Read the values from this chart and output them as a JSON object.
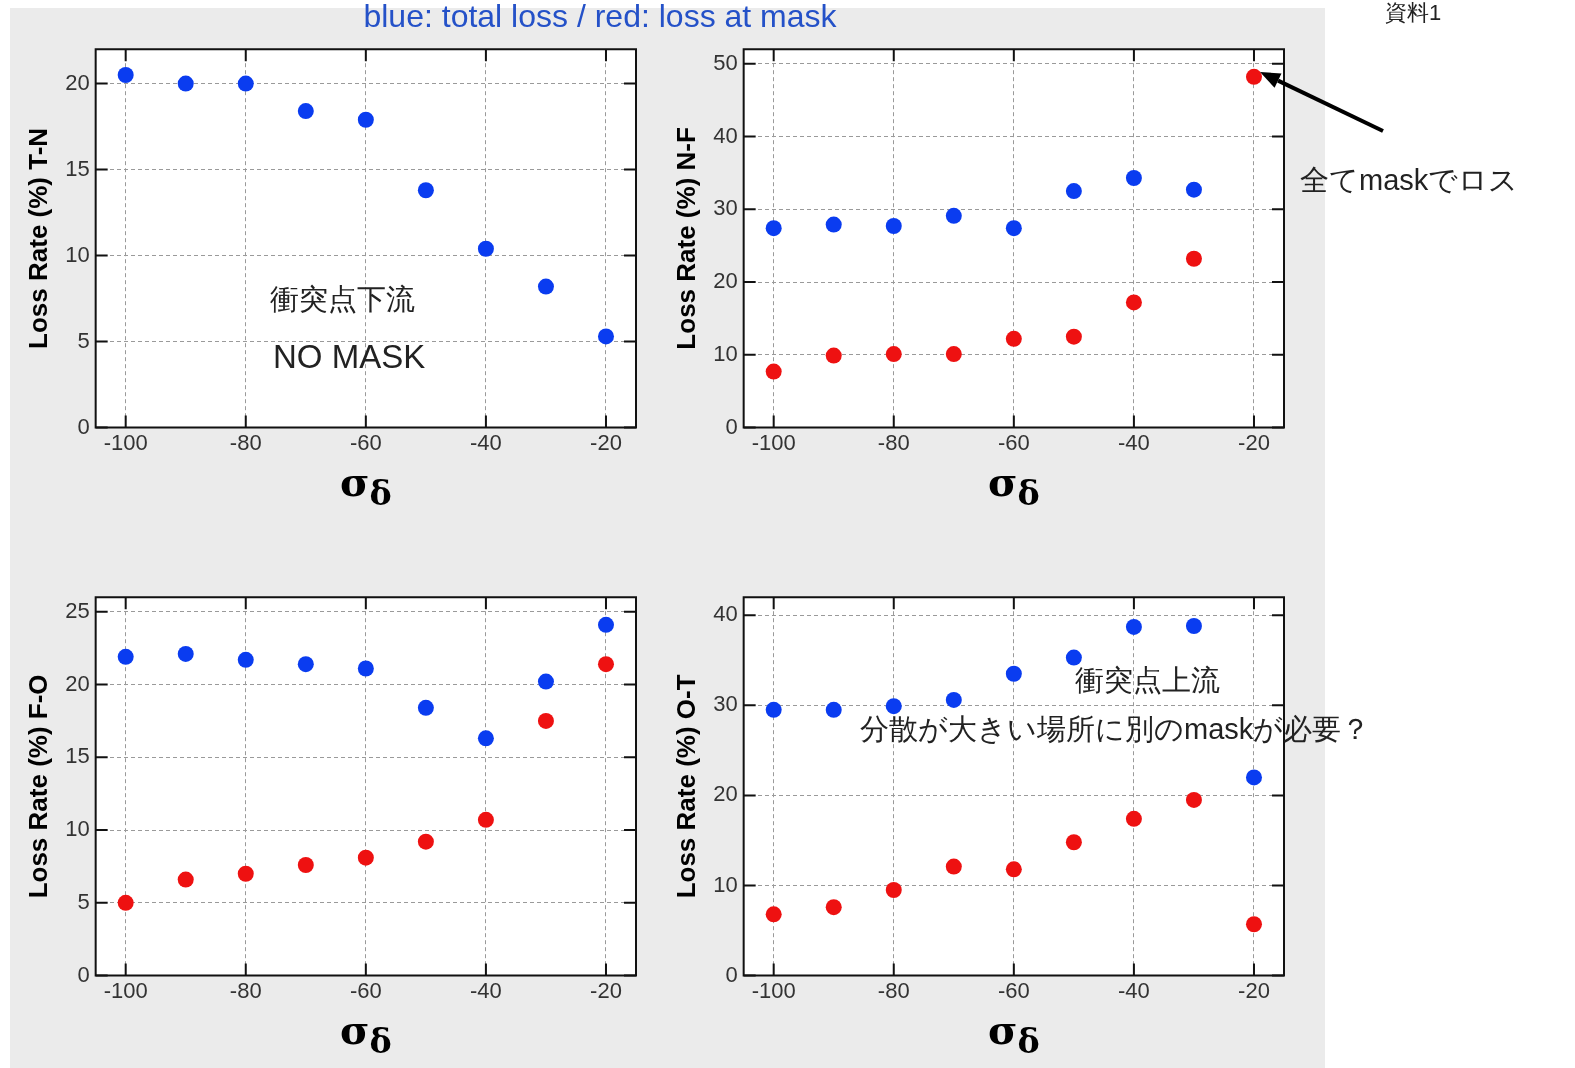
{
  "chart_data": [
    {
      "type": "scatter",
      "title": "blue: total loss / red: loss at mask",
      "xlabel": "σ$_{δ}$",
      "ylabel": "Loss Rate (%) T-N",
      "x": [
        -100,
        -90,
        -80,
        -70,
        -60,
        -50,
        -40,
        -30,
        -20
      ],
      "xlim": [
        -105,
        -15
      ],
      "xticks": [
        -100,
        -80,
        -60,
        -40,
        -20
      ],
      "ylim": [
        0,
        22
      ],
      "yticks": [
        0,
        5,
        10,
        15,
        20
      ],
      "grid": true,
      "marker": "circle",
      "annotations": [
        "衝突点下流",
        "NO MASK"
      ],
      "series": [
        {
          "color": "#0a3cf0",
          "values": [
            20.5,
            20.0,
            20.0,
            18.4,
            17.9,
            13.8,
            10.4,
            8.2,
            5.3
          ]
        }
      ]
    },
    {
      "type": "scatter",
      "xlabel": "σ$_{δ}$",
      "ylabel": "Loss Rate (%) N-F",
      "x": [
        -100,
        -90,
        -80,
        -70,
        -60,
        -50,
        -40,
        -30,
        -20
      ],
      "xlim": [
        -105,
        -15
      ],
      "xticks": [
        -100,
        -80,
        -60,
        -40,
        -20
      ],
      "ylim": [
        0,
        52
      ],
      "yticks": [
        0,
        10,
        20,
        30,
        40,
        50
      ],
      "grid": true,
      "marker": "circle",
      "annotations": [
        "資料1",
        "全てmaskでロス"
      ],
      "series": [
        {
          "color": "#0a3cf0",
          "values": [
            27.4,
            27.9,
            27.7,
            29.1,
            27.4,
            32.5,
            34.3,
            32.7,
            null
          ]
        },
        {
          "color": "#ee1111",
          "values": [
            7.7,
            9.9,
            10.1,
            10.1,
            12.2,
            12.5,
            17.2,
            23.2,
            48.2
          ]
        }
      ]
    },
    {
      "type": "scatter",
      "xlabel": "σ$_{δ}$",
      "ylabel": "Loss Rate (%) F-O",
      "x": [
        -100,
        -90,
        -80,
        -70,
        -60,
        -50,
        -40,
        -30,
        -20
      ],
      "xlim": [
        -105,
        -15
      ],
      "xticks": [
        -100,
        -80,
        -60,
        -40,
        -20
      ],
      "ylim": [
        0,
        26
      ],
      "yticks": [
        0,
        5,
        10,
        15,
        20,
        25
      ],
      "grid": true,
      "marker": "circle",
      "series": [
        {
          "color": "#0a3cf0",
          "values": [
            21.9,
            22.1,
            21.7,
            21.4,
            21.1,
            18.4,
            16.3,
            20.2,
            24.1
          ]
        },
        {
          "color": "#ee1111",
          "values": [
            5.0,
            6.6,
            7.0,
            7.6,
            8.1,
            9.2,
            10.7,
            17.5,
            21.4
          ]
        }
      ]
    },
    {
      "type": "scatter",
      "xlabel": "σ$_{δ}$",
      "ylabel": "Loss Rate (%) O-T",
      "x": [
        -100,
        -90,
        -80,
        -70,
        -60,
        -50,
        -40,
        -30,
        -20
      ],
      "xlim": [
        -105,
        -15
      ],
      "xticks": [
        -100,
        -80,
        -60,
        -40,
        -20
      ],
      "ylim": [
        0,
        42
      ],
      "yticks": [
        0,
        10,
        20,
        30,
        40
      ],
      "grid": true,
      "marker": "circle",
      "annotations": [
        "衝突点上流",
        "分散が大きい場所に別のmaskが必要？"
      ],
      "series": [
        {
          "color": "#0a3cf0",
          "values": [
            29.5,
            29.5,
            29.9,
            30.6,
            33.5,
            35.3,
            38.7,
            38.8,
            22.0
          ]
        },
        {
          "color": "#ee1111",
          "values": [
            6.8,
            7.6,
            9.5,
            12.1,
            11.8,
            14.8,
            17.4,
            19.5,
            5.7
          ]
        }
      ]
    }
  ]
}
